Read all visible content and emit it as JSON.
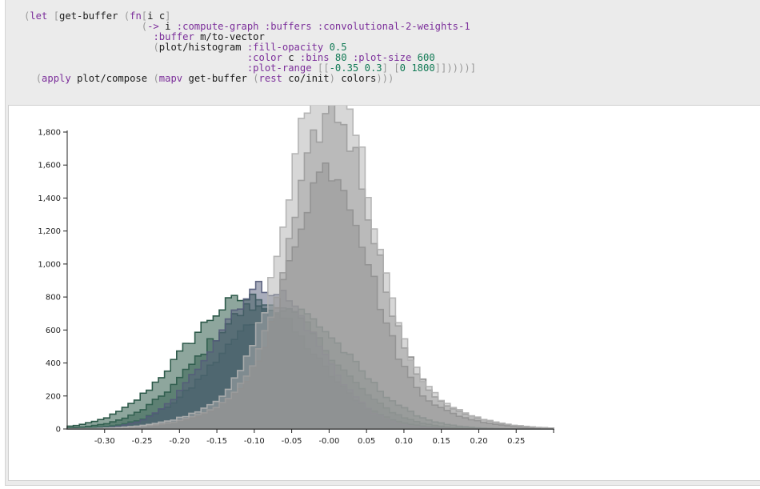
{
  "code_cell": {
    "lines": [
      [
        [
          "br",
          "("
        ],
        [
          "kw",
          "let "
        ],
        [
          "br",
          "["
        ],
        [
          "t",
          "get-buffer "
        ],
        [
          "br",
          "("
        ],
        [
          "kw",
          "fn"
        ],
        [
          "br",
          "["
        ],
        [
          "t",
          "i c"
        ],
        [
          "br",
          "]"
        ]
      ],
      [
        [
          "t",
          "                    "
        ],
        [
          "br",
          "("
        ],
        [
          "kw",
          "-> "
        ],
        [
          "t",
          "i "
        ],
        [
          "kwd",
          ":compute-graph :buffers :convolutional-2-weights-1"
        ]
      ],
      [
        [
          "t",
          "                      "
        ],
        [
          "kwd",
          ":buffer "
        ],
        [
          "t",
          "m/to-vector"
        ]
      ],
      [
        [
          "t",
          "                      "
        ],
        [
          "br",
          "("
        ],
        [
          "t",
          "plot/histogram "
        ],
        [
          "kwd",
          ":fill-opacity "
        ],
        [
          "num",
          "0.5"
        ]
      ],
      [
        [
          "t",
          "                                      "
        ],
        [
          "kwd",
          ":color "
        ],
        [
          "t",
          "c "
        ],
        [
          "kwd",
          ":bins "
        ],
        [
          "num",
          "80 "
        ],
        [
          "kwd",
          ":plot-size "
        ],
        [
          "num",
          "600"
        ]
      ],
      [
        [
          "t",
          "                                      "
        ],
        [
          "kwd",
          ":plot-range "
        ],
        [
          "br",
          "[["
        ],
        [
          "num",
          "-0.35 0.3"
        ],
        [
          "br",
          "] ["
        ],
        [
          "num",
          "0 1800"
        ],
        [
          "br",
          "]]))))]"
        ]
      ],
      [
        [
          "t",
          "  "
        ],
        [
          "br",
          "("
        ],
        [
          "kw",
          "apply "
        ],
        [
          "t",
          "plot/compose "
        ],
        [
          "br",
          "("
        ],
        [
          "kw",
          "mapv "
        ],
        [
          "t",
          "get-buffer "
        ],
        [
          "br",
          "("
        ],
        [
          "kw",
          "rest "
        ],
        [
          "t",
          "co/init"
        ],
        [
          "br",
          ") "
        ],
        [
          "t",
          "colors"
        ],
        [
          "br",
          "))"
        ],
        [
          "br",
          ")"
        ]
      ]
    ]
  },
  "chart_data": {
    "type": "histogram",
    "xlim": [
      -0.35,
      0.3
    ],
    "ylim": [
      0,
      1800
    ],
    "x_ticks": [
      "-0.30",
      "-0.25",
      "-0.20",
      "-0.15",
      "-0.10",
      "-0.05",
      "-0.00",
      "0.05",
      "0.10",
      "0.15",
      "0.20",
      "0.25"
    ],
    "y_ticks": [
      "0",
      "200",
      "400",
      "600",
      "800",
      "1,000",
      "1,200",
      "1,400",
      "1,600",
      "1,800"
    ],
    "bins": 80,
    "fill_opacity": 0.5,
    "grid": false,
    "series": [
      {
        "color": "#1d4d3c",
        "peak_x": -0.11,
        "peak_y": 790,
        "shape": "broad"
      },
      {
        "color": "#2b5a4a",
        "peak_x": -0.085,
        "peak_y": 760,
        "shape": "broad"
      },
      {
        "color": "#38665a",
        "peak_x": -0.06,
        "peak_y": 735,
        "shape": "broad"
      },
      {
        "color": "#545c7a",
        "peak_x": -0.085,
        "peak_y": 860,
        "shape": "medium"
      },
      {
        "color": "#5a5a5a",
        "peak_x": 0.0,
        "peak_y": 1240,
        "shape": "narrow"
      },
      {
        "color": "#8a8a8a",
        "peak_x": 0.005,
        "peak_y": 1500,
        "shape": "narrow"
      },
      {
        "color": "#b0b0b0",
        "peak_x": 0.0,
        "peak_y": 1760,
        "shape": "narrow"
      }
    ]
  }
}
